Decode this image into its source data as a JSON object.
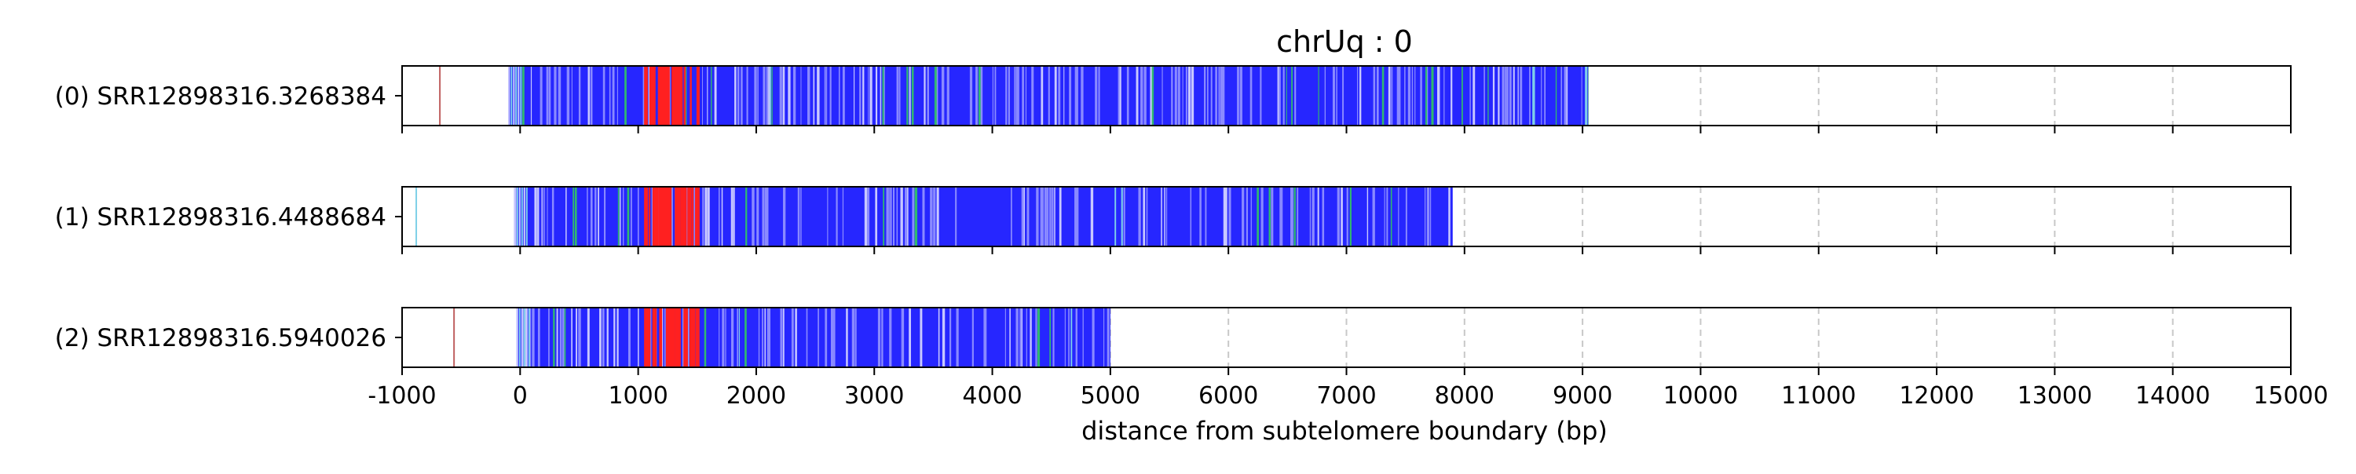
{
  "chart_data": {
    "type": "bar",
    "title": "chrUq : 0",
    "xlabel": "distance from subtelomere boundary (bp)",
    "ylabel": "",
    "xlim": [
      -1000,
      15000
    ],
    "xticks": [
      -1000,
      0,
      1000,
      2000,
      3000,
      4000,
      5000,
      6000,
      7000,
      8000,
      9000,
      10000,
      11000,
      12000,
      13000,
      14000,
      15000
    ],
    "grid": "vertical dashed",
    "colors": {
      "blue": "#2626ff",
      "light_blue": "#8a8aff",
      "pale": "#c8c8ff",
      "green": "#30b870",
      "cyan": "#7fd0e8",
      "red": "#ff2020",
      "brown": "#c06060",
      "grid": "#c8c8c8"
    },
    "series": [
      {
        "name": "(0) SRR12898316.3268384",
        "read_start": -100,
        "read_end": 9050,
        "red_region": [
          1050,
          1520
        ],
        "isolated_marks": [
          {
            "x": -680,
            "color": "brown"
          }
        ]
      },
      {
        "name": "(1) SRR12898316.4488684",
        "read_start": -50,
        "read_end": 7900,
        "red_region": [
          1050,
          1520
        ],
        "isolated_marks": [
          {
            "x": -880,
            "color": "cyan"
          }
        ]
      },
      {
        "name": "(2) SRR12898316.5940026",
        "read_start": -30,
        "read_end": 5000,
        "red_region": [
          1050,
          1520
        ],
        "isolated_marks": [
          {
            "x": -560,
            "color": "brown"
          }
        ]
      }
    ]
  }
}
